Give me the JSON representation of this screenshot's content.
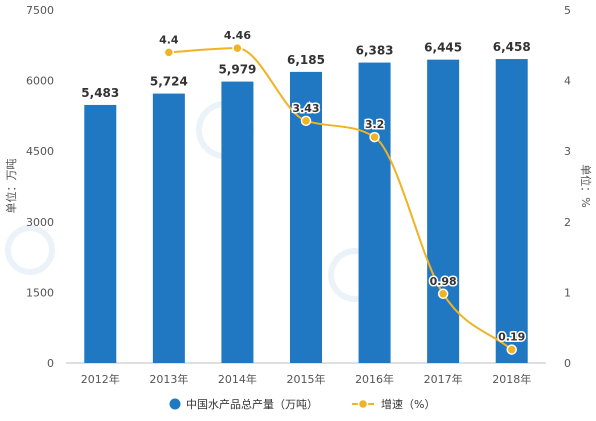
{
  "chart_data": {
    "type": "bar",
    "categories": [
      "2012年",
      "2013年",
      "2014年",
      "2015年",
      "2016年",
      "2017年",
      "2018年"
    ],
    "series": [
      {
        "name": "中国水产品总产量（万吨）",
        "type": "bar",
        "axis": "left",
        "color": "#1f78c1",
        "values": [
          5483,
          5724,
          5979,
          6185,
          6383,
          6445,
          6458
        ],
        "labels": [
          "5,483",
          "5,724",
          "5,979",
          "6,185",
          "6,383",
          "6,445",
          "6,458"
        ]
      },
      {
        "name": "增速（%）",
        "type": "line",
        "axis": "right",
        "color": "#f0b323",
        "values": [
          null,
          4.4,
          4.46,
          3.43,
          3.2,
          0.98,
          0.19
        ],
        "labels": [
          "",
          "4.4",
          "4.46",
          "3.43",
          "3.2",
          "0.98",
          "0.19"
        ]
      }
    ],
    "ylabel": "单位：万吨",
    "y2label": "单位：%",
    "ylim": [
      0,
      7500
    ],
    "yticks": [
      0,
      1500,
      3000,
      4500,
      6000,
      7500
    ],
    "y2lim": [
      0,
      5
    ],
    "y2ticks": [
      0,
      1,
      2,
      3,
      4,
      5
    ],
    "grid": false,
    "legend_position": "bottom-center"
  }
}
